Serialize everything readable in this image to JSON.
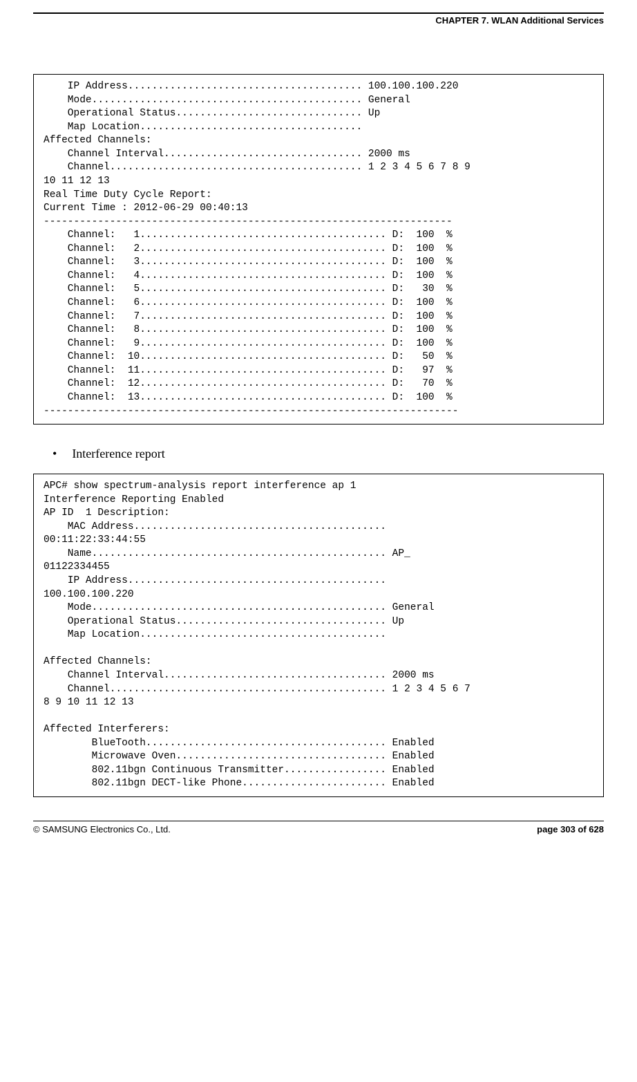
{
  "header": {
    "chapter_title": "CHAPTER 7. WLAN Additional Services"
  },
  "block1": {
    "lines": [
      "    IP Address....................................... 100.100.100.220",
      "    Mode............................................. General",
      "    Operational Status............................... Up",
      "    Map Location.....................................",
      "Affected Channels:",
      "    Channel Interval................................. 2000 ms",
      "    Channel.......................................... 1 2 3 4 5 6 7 8 9",
      "10 11 12 13",
      "Real Time Duty Cycle Report:",
      "Current Time : 2012-06-29 00:40:13",
      "--------------------------------------------------------------------",
      "    Channel:   1......................................... D:  100  %",
      "    Channel:   2......................................... D:  100  %",
      "    Channel:   3......................................... D:  100  %",
      "    Channel:   4......................................... D:  100  %",
      "    Channel:   5......................................... D:   30  %",
      "    Channel:   6......................................... D:  100  %",
      "    Channel:   7......................................... D:  100  %",
      "    Channel:   8......................................... D:  100  %",
      "    Channel:   9......................................... D:  100  %",
      "    Channel:  10......................................... D:   50  %",
      "    Channel:  11......................................... D:   97  %",
      "    Channel:  12......................................... D:   70  %",
      "    Channel:  13......................................... D:  100  %",
      "---------------------------------------------------------------------"
    ]
  },
  "bullet": {
    "text": "Interference report"
  },
  "block2": {
    "lines": [
      "APC# show spectrum-analysis report interference ap 1",
      "Interference Reporting Enabled",
      "AP ID  1 Description:",
      "    MAC Address..........................................",
      "00:11:22:33:44:55",
      "    Name................................................. AP_",
      "01122334455",
      "    IP Address...........................................",
      "100.100.100.220",
      "    Mode................................................. General",
      "    Operational Status................................... Up",
      "    Map Location.........................................",
      "",
      "Affected Channels:",
      "    Channel Interval..................................... 2000 ms",
      "    Channel.............................................. 1 2 3 4 5 6 7",
      "8 9 10 11 12 13",
      "",
      "Affected Interferers:",
      "        BlueTooth........................................ Enabled",
      "        Microwave Oven................................... Enabled",
      "        802.11bgn Continuous Transmitter................. Enabled",
      "        802.11bgn DECT-like Phone........................ Enabled"
    ]
  },
  "footer": {
    "copyright": "© SAMSUNG Electronics Co., Ltd.",
    "page_label": "page 303 of 628"
  }
}
